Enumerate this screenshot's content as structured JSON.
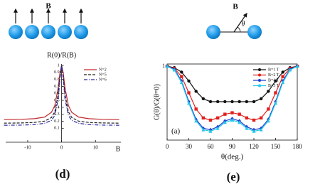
{
  "chart_data": [
    {
      "type": "line",
      "panel_label": "(d)",
      "diagram_label": "B",
      "ylabel": "R(0)/R(B)",
      "xlabel": "B",
      "x": [
        -17,
        -12,
        -8,
        -5,
        -3,
        -2,
        -1,
        -0.5,
        0,
        0.5,
        1,
        2,
        3,
        5,
        8,
        12,
        17
      ],
      "series": [
        {
          "name": "N=2",
          "color": "#c0282d",
          "dash": "solid",
          "values": [
            0.224,
            0.228,
            0.237,
            0.26,
            0.328,
            0.426,
            0.682,
            0.884,
            1,
            0.884,
            0.682,
            0.426,
            0.328,
            0.26,
            0.237,
            0.228,
            0.224
          ]
        },
        {
          "name": "N=5",
          "color": "#222222",
          "dash": "dashed",
          "values": [
            0.173,
            0.176,
            0.183,
            0.202,
            0.253,
            0.336,
            0.585,
            0.834,
            1,
            0.834,
            0.585,
            0.336,
            0.253,
            0.202,
            0.183,
            0.176,
            0.173
          ]
        },
        {
          "name": "N=6",
          "color": "#2a2aa0",
          "dash": "dashdot",
          "values": [
            0.143,
            0.145,
            0.152,
            0.172,
            0.212,
            0.284,
            0.521,
            0.802,
            1,
            0.802,
            0.521,
            0.284,
            0.212,
            0.172,
            0.152,
            0.145,
            0.143
          ]
        }
      ],
      "xlim": [
        -16.5,
        17.5
      ],
      "ylim": [
        -0.1,
        1.02
      ],
      "xticks": [
        -10,
        0,
        10
      ],
      "yticks": [
        0.1,
        0.2,
        0.3,
        0.4,
        0.5,
        0.6,
        0.7,
        0.8,
        0.9,
        1
      ],
      "legend": "upper right",
      "frame": false
    },
    {
      "type": "line",
      "panel_label": "(e)",
      "diagram_label": "B",
      "angle_label": "θ",
      "ylabel": "G(θ)/G(θ=0)",
      "xlabel": "θ(deg.)",
      "annotation": "(a)",
      "x": [
        0,
        10,
        20,
        30,
        40,
        50,
        60,
        70,
        80,
        90,
        100,
        110,
        120,
        130,
        140,
        150,
        160,
        170,
        180
      ],
      "series": [
        {
          "name": "B=1 T",
          "color": "#111111",
          "marker": "circle",
          "values": [
            1,
            0.98,
            0.92,
            0.8,
            0.66,
            0.56,
            0.52,
            0.52,
            0.52,
            0.52,
            0.52,
            0.52,
            0.52,
            0.56,
            0.66,
            0.8,
            0.92,
            0.98,
            1
          ]
        },
        {
          "name": "B=2 T",
          "color": "#e0201c",
          "marker": "square",
          "values": [
            1,
            0.97,
            0.86,
            0.64,
            0.42,
            0.3,
            0.27,
            0.3,
            0.35,
            0.37,
            0.35,
            0.3,
            0.27,
            0.3,
            0.42,
            0.64,
            0.86,
            0.97,
            1
          ]
        },
        {
          "name": "B=4 T",
          "color": "#1c3fd0",
          "marker": "diamond",
          "values": [
            1,
            0.96,
            0.8,
            0.52,
            0.28,
            0.16,
            0.14,
            0.18,
            0.26,
            0.29,
            0.26,
            0.18,
            0.14,
            0.16,
            0.28,
            0.52,
            0.8,
            0.96,
            1
          ]
        },
        {
          "name": "B=5 T",
          "color": "#22c8e8",
          "marker": "triangle",
          "values": [
            1,
            0.95,
            0.78,
            0.5,
            0.26,
            0.14,
            0.12,
            0.16,
            0.24,
            0.27,
            0.24,
            0.16,
            0.12,
            0.14,
            0.26,
            0.5,
            0.78,
            0.95,
            1
          ]
        }
      ],
      "xlim": [
        0,
        180
      ],
      "ylim": [
        0,
        1.03
      ],
      "xticks": [
        0,
        30,
        60,
        90,
        120,
        150,
        180
      ],
      "yticks": [
        1
      ],
      "legend": "upper right",
      "frame": true
    }
  ]
}
